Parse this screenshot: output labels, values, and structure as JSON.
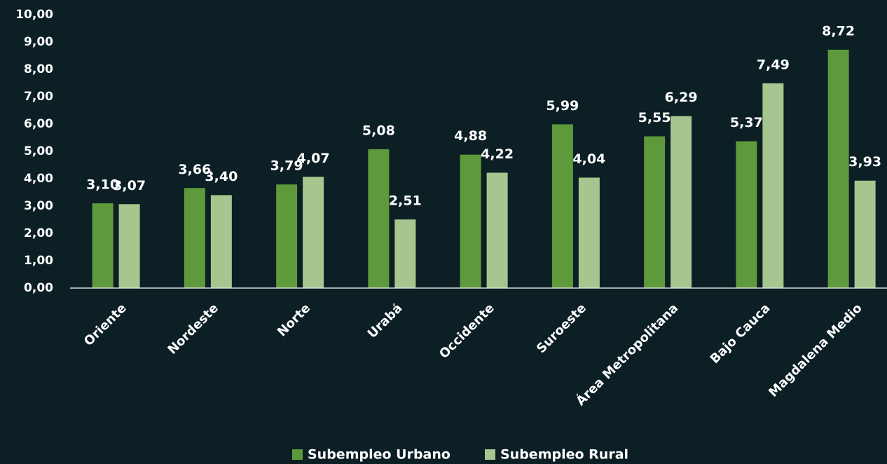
{
  "chart_data": {
    "type": "bar",
    "categories": [
      "Oriente",
      "Nordeste",
      "Norte",
      "Urabá",
      "Occidente",
      "Suroeste",
      "Área Metropolitana",
      "Bajo Cauca",
      "Magdalena Medio"
    ],
    "series": [
      {
        "name": "Subempleo Urbano",
        "color": "#5e9a3c",
        "values": [
          3.1,
          3.66,
          3.79,
          5.08,
          4.88,
          5.99,
          5.55,
          5.37,
          8.72
        ],
        "value_labels": [
          "3,10",
          "3,66",
          "3,79",
          "5,08",
          "4,88",
          "5,99",
          "5,55",
          "5,37",
          "8,72"
        ]
      },
      {
        "name": "Subempleo Rural",
        "color": "#a5c78f",
        "values": [
          3.07,
          3.4,
          4.07,
          2.51,
          4.22,
          4.04,
          6.29,
          7.49,
          3.93
        ],
        "value_labels": [
          "3,07",
          "3,40",
          "4,07",
          "2,51",
          "4,22",
          "4,04",
          "6,29",
          "7,49",
          "3,93"
        ]
      }
    ],
    "ylim": [
      0,
      10
    ],
    "yticks": [
      {
        "value": 0,
        "label": "0,00"
      },
      {
        "value": 1,
        "label": "1,00"
      },
      {
        "value": 2,
        "label": "2,00"
      },
      {
        "value": 3,
        "label": "3,00"
      },
      {
        "value": 4,
        "label": "4,00"
      },
      {
        "value": 5,
        "label": "5,00"
      },
      {
        "value": 6,
        "label": "6,00"
      },
      {
        "value": 7,
        "label": "7,00"
      },
      {
        "value": 8,
        "label": "8,00"
      },
      {
        "value": 9,
        "label": "9,00"
      },
      {
        "value": 10,
        "label": "10,00"
      }
    ],
    "grid": false,
    "legend": "bottom"
  }
}
